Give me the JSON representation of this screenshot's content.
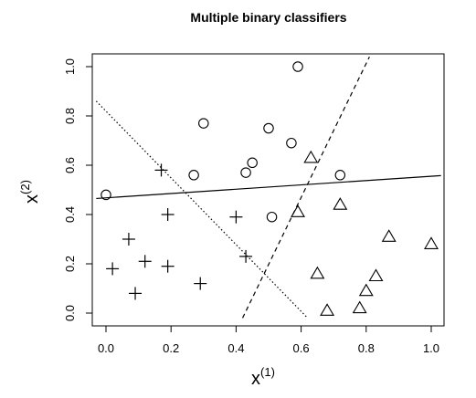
{
  "chart_data": {
    "type": "scatter",
    "title": "Multiple binary classifiers",
    "xlabel": {
      "base": "x",
      "sup": "(1)"
    },
    "ylabel": {
      "base": "x",
      "sup": "(2)"
    },
    "xlim": [
      0.0,
      1.0
    ],
    "ylim": [
      0.0,
      1.0
    ],
    "x_ticks": [
      "0.0",
      "0.2",
      "0.4",
      "0.6",
      "0.8",
      "1.0"
    ],
    "y_ticks": [
      "0.0",
      "0.2",
      "0.4",
      "0.6",
      "0.8",
      "1.0"
    ],
    "grid": false,
    "series": [
      {
        "marker": "plus",
        "points": [
          [
            0.02,
            0.18
          ],
          [
            0.07,
            0.3
          ],
          [
            0.09,
            0.08
          ],
          [
            0.12,
            0.21
          ],
          [
            0.17,
            0.58
          ],
          [
            0.19,
            0.4
          ],
          [
            0.19,
            0.19
          ],
          [
            0.29,
            0.12
          ],
          [
            0.4,
            0.39
          ],
          [
            0.43,
            0.23
          ]
        ]
      },
      {
        "marker": "circle",
        "points": [
          [
            0.0,
            0.48
          ],
          [
            0.27,
            0.56
          ],
          [
            0.3,
            0.77
          ],
          [
            0.43,
            0.57
          ],
          [
            0.45,
            0.61
          ],
          [
            0.5,
            0.75
          ],
          [
            0.51,
            0.39
          ],
          [
            0.57,
            0.69
          ],
          [
            0.59,
            1.0
          ],
          [
            0.72,
            0.56
          ]
        ]
      },
      {
        "marker": "triangle",
        "points": [
          [
            0.59,
            0.41
          ],
          [
            0.63,
            0.63
          ],
          [
            0.65,
            0.16
          ],
          [
            0.68,
            0.01
          ],
          [
            0.72,
            0.44
          ],
          [
            0.78,
            0.02
          ],
          [
            0.8,
            0.09
          ],
          [
            0.83,
            0.15
          ],
          [
            0.87,
            0.31
          ],
          [
            1.0,
            0.28
          ]
        ]
      }
    ],
    "lines": [
      {
        "style": "solid",
        "x": [
          -0.03,
          1.03
        ],
        "y": [
          0.465,
          0.558
        ]
      },
      {
        "style": "dotted",
        "x": [
          -0.03,
          0.62
        ],
        "y": [
          0.86,
          -0.02
        ]
      },
      {
        "style": "dashed",
        "x": [
          0.42,
          0.81
        ],
        "y": [
          -0.02,
          1.04
        ]
      }
    ]
  }
}
